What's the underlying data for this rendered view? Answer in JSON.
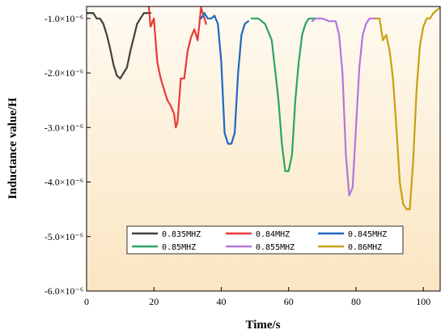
{
  "chart_data": {
    "type": "line",
    "xlabel": "Time/s",
    "ylabel": "Inductance value/H",
    "xlim": [
      0,
      105
    ],
    "ylim": [
      -6e-06,
      -7.8e-07
    ],
    "xticks": [
      0,
      20,
      40,
      60,
      80,
      100
    ],
    "xtick_labels": [
      "0",
      "20",
      "40",
      "60",
      "80",
      "100"
    ],
    "yticks": [
      -1e-06,
      -2e-06,
      -3e-06,
      -4e-06,
      -5e-06,
      -6e-06
    ],
    "ytick_labels": [
      "-1.0×10⁻⁶",
      "-2.0×10⁻⁶",
      "-3.0×10⁻⁶",
      "-4.0×10⁻⁶",
      "-5.0×10⁻⁶",
      "-6.0×10⁻⁶"
    ],
    "grid": false,
    "legend_position": "bottom-center",
    "background": "gradient-cream",
    "series": [
      {
        "name": "0.835MHZ",
        "color": "#404040",
        "points": [
          [
            0,
            -9e-07
          ],
          [
            2,
            -9e-07
          ],
          [
            3,
            -1e-06
          ],
          [
            4,
            -1e-06
          ],
          [
            5,
            -1.1e-06
          ],
          [
            6,
            -1.3e-06
          ],
          [
            7,
            -1.55e-06
          ],
          [
            8,
            -1.85e-06
          ],
          [
            9,
            -2.05e-06
          ],
          [
            10,
            -2.1e-06
          ],
          [
            11,
            -2e-06
          ],
          [
            12,
            -1.9e-06
          ],
          [
            13,
            -1.6e-06
          ],
          [
            14,
            -1.35e-06
          ],
          [
            15,
            -1.1e-06
          ],
          [
            16,
            -1e-06
          ],
          [
            17,
            -9e-07
          ],
          [
            19,
            -9e-07
          ]
        ]
      },
      {
        "name": "0.84MHZ",
        "color": "#e8393a",
        "points": [
          [
            18.5,
            -8e-07
          ],
          [
            19,
            -1.15e-06
          ],
          [
            20,
            -1e-06
          ],
          [
            21,
            -1.8e-06
          ],
          [
            22,
            -2.1e-06
          ],
          [
            23,
            -2.3e-06
          ],
          [
            24,
            -2.5e-06
          ],
          [
            25,
            -2.6e-06
          ],
          [
            26,
            -2.75e-06
          ],
          [
            26.5,
            -3e-06
          ],
          [
            27,
            -2.9e-06
          ],
          [
            28,
            -2.1e-06
          ],
          [
            29,
            -2.1e-06
          ],
          [
            30,
            -1.6e-06
          ],
          [
            31,
            -1.35e-06
          ],
          [
            32,
            -1.2e-06
          ],
          [
            33,
            -1.4e-06
          ],
          [
            34,
            -8e-07
          ],
          [
            35,
            -1e-06
          ],
          [
            35.5,
            -1.1e-06
          ]
        ]
      },
      {
        "name": "0.845MHZ",
        "color": "#2167c4",
        "points": [
          [
            34,
            -1e-06
          ],
          [
            35,
            -9e-07
          ],
          [
            36,
            -1e-06
          ],
          [
            37,
            -1e-06
          ],
          [
            38,
            -9.5e-07
          ],
          [
            39,
            -1.1e-06
          ],
          [
            40,
            -1.8e-06
          ],
          [
            41,
            -3.1e-06
          ],
          [
            42,
            -3.3e-06
          ],
          [
            43,
            -3.3e-06
          ],
          [
            44,
            -3.1e-06
          ],
          [
            45,
            -2e-06
          ],
          [
            46,
            -1.3e-06
          ],
          [
            47,
            -1.1e-06
          ],
          [
            48,
            -1.05e-06
          ]
        ]
      },
      {
        "name": "0.85MHZ",
        "color": "#2aa560",
        "points": [
          [
            49,
            -1e-06
          ],
          [
            51,
            -1e-06
          ],
          [
            53,
            -1.1e-06
          ],
          [
            55,
            -1.4e-06
          ],
          [
            57,
            -2.5e-06
          ],
          [
            58,
            -3.3e-06
          ],
          [
            59,
            -3.8e-06
          ],
          [
            60,
            -3.8e-06
          ],
          [
            61,
            -3.5e-06
          ],
          [
            62,
            -2.5e-06
          ],
          [
            63,
            -1.8e-06
          ],
          [
            64,
            -1.3e-06
          ],
          [
            65,
            -1.1e-06
          ],
          [
            66,
            -1e-06
          ],
          [
            68,
            -1e-06
          ]
        ]
      },
      {
        "name": "0.855MHZ",
        "color": "#b176e0",
        "points": [
          [
            67,
            -1.05e-06
          ],
          [
            68,
            -1e-06
          ],
          [
            70,
            -1e-06
          ],
          [
            72,
            -1.05e-06
          ],
          [
            74,
            -1.05e-06
          ],
          [
            75,
            -1.3e-06
          ],
          [
            76,
            -2e-06
          ],
          [
            77,
            -3.5e-06
          ],
          [
            78,
            -4.25e-06
          ],
          [
            79,
            -4.1e-06
          ],
          [
            80,
            -3e-06
          ],
          [
            81,
            -1.9e-06
          ],
          [
            82,
            -1.3e-06
          ],
          [
            83,
            -1.1e-06
          ],
          [
            84,
            -1e-06
          ],
          [
            86,
            -1e-06
          ]
        ]
      },
      {
        "name": "0.86MHZ",
        "color": "#c9a010",
        "points": [
          [
            86,
            -1e-06
          ],
          [
            87,
            -1e-06
          ],
          [
            88,
            -1.4e-06
          ],
          [
            89,
            -1.3e-06
          ],
          [
            90,
            -1.6e-06
          ],
          [
            91,
            -2.1e-06
          ],
          [
            92,
            -3e-06
          ],
          [
            93,
            -4e-06
          ],
          [
            94,
            -4.4e-06
          ],
          [
            95,
            -4.5e-06
          ],
          [
            96,
            -4.5e-06
          ],
          [
            97,
            -3.6e-06
          ],
          [
            98,
            -2.3e-06
          ],
          [
            99,
            -1.5e-06
          ],
          [
            100,
            -1.15e-06
          ],
          [
            101,
            -1e-06
          ],
          [
            102,
            -1e-06
          ],
          [
            103,
            -9e-07
          ],
          [
            104,
            -8.5e-07
          ],
          [
            105,
            -8e-07
          ]
        ]
      }
    ]
  }
}
